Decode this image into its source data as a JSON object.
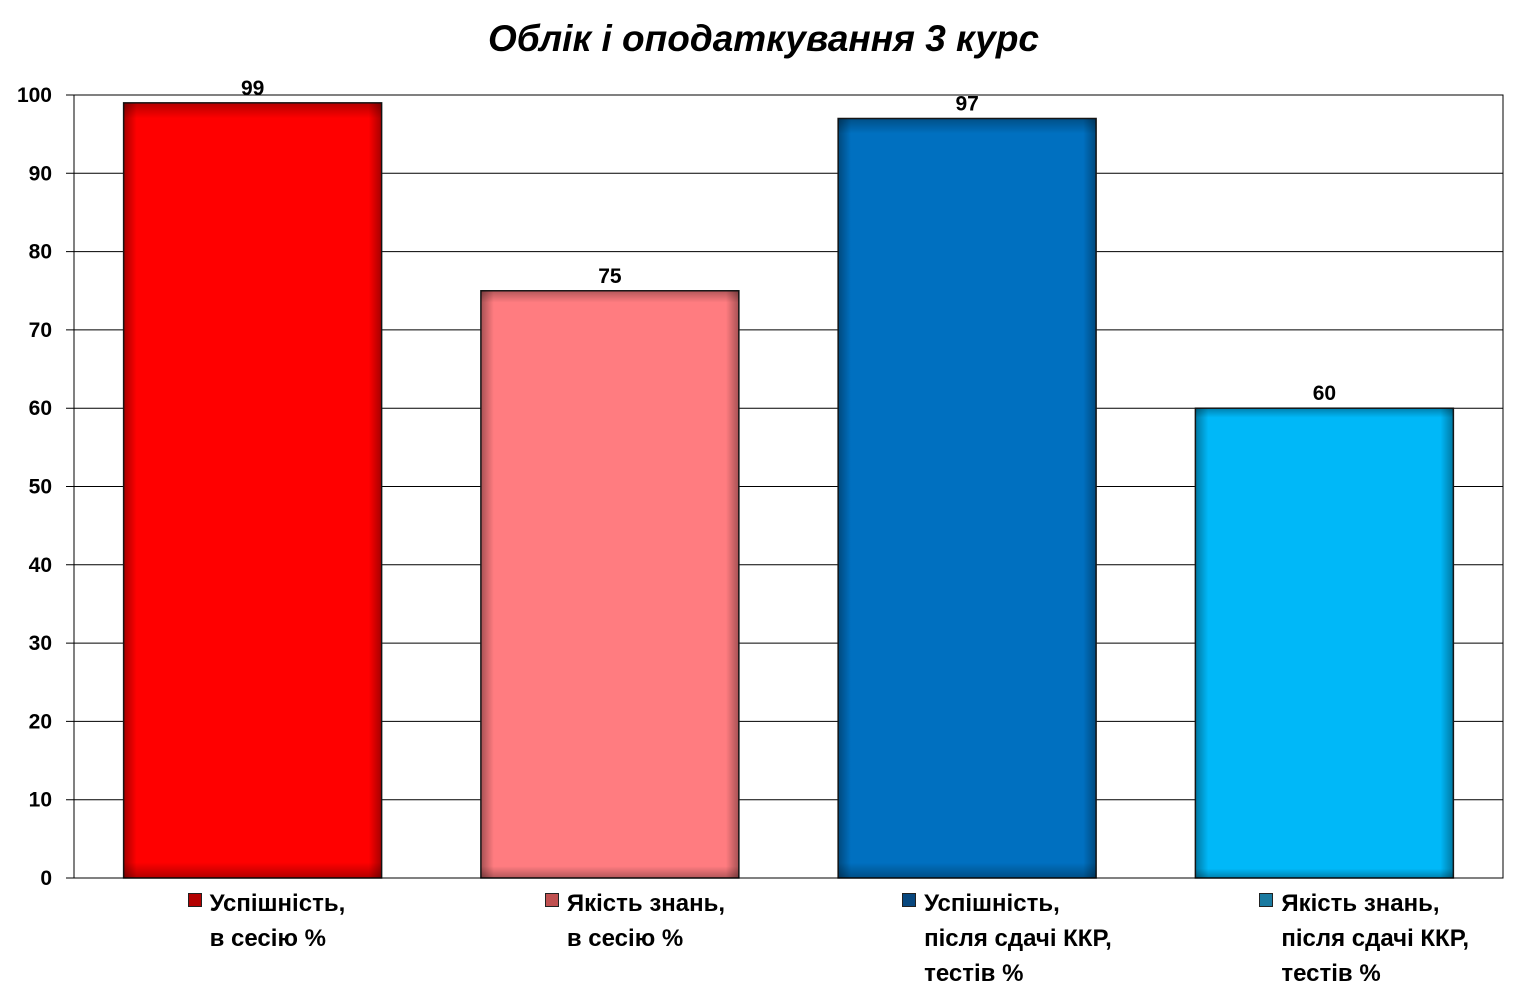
{
  "chart_data": {
    "type": "bar",
    "title": "Облік і оподаткування 3 курс",
    "xlabel": "",
    "ylabel": "",
    "ylim": [
      0,
      100
    ],
    "yticks": [
      "0",
      "10",
      "20",
      "30",
      "40",
      "50",
      "60",
      "70",
      "80",
      "90",
      "100"
    ],
    "grid": true,
    "legend_position": "bottom",
    "categories": [
      "Успішність,\nв сесію %",
      "Якість знань,\nв сесію %",
      "Успішність,\nпісля сдачі ККР,\nтестів %",
      "Якість знань,\nпісля сдачі ККР,\nтестів %"
    ],
    "values": [
      99,
      75,
      97,
      60
    ],
    "data_labels": [
      "99",
      "75",
      "97",
      "60"
    ],
    "colors": [
      "#ff0000",
      "#ff7c80",
      "#0070c0",
      "#00b8f8"
    ],
    "legend_swatch_colors": [
      "#b30000",
      "#c05050",
      "#08477e",
      "#1a7aa0"
    ]
  }
}
